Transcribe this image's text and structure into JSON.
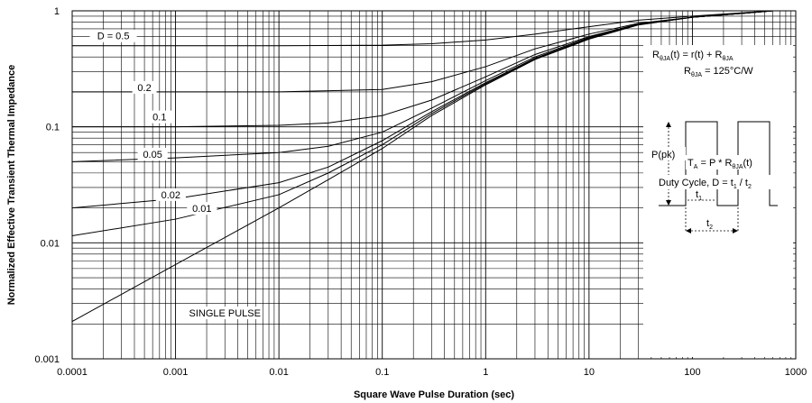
{
  "chart_data": {
    "type": "line",
    "title": "",
    "xlabel": "Square Wave Pulse Duration (sec)",
    "ylabel": "Normalized Effective Transient Thermal Impedance",
    "x_scale": "log",
    "y_scale": "log",
    "xlim": [
      0.0001,
      1000
    ],
    "ylim": [
      0.001,
      1
    ],
    "grid": true,
    "x_ticks": [
      "0.0001",
      "0.001",
      "0.01",
      "0.1",
      "1",
      "10",
      "100",
      "1000"
    ],
    "y_ticks": [
      "1",
      "0.1",
      "0.01",
      "0.001"
    ],
    "series": [
      {
        "name": "D = 0.5",
        "points": [
          [
            0.0001,
            0.5
          ],
          [
            0.001,
            0.5
          ],
          [
            0.01,
            0.5
          ],
          [
            0.1,
            0.505
          ],
          [
            0.3,
            0.52
          ],
          [
            1,
            0.56
          ],
          [
            3,
            0.63
          ],
          [
            10,
            0.73
          ],
          [
            30,
            0.83
          ],
          [
            100,
            0.9
          ],
          [
            300,
            0.96
          ],
          [
            600,
            1.0
          ]
        ]
      },
      {
        "name": "0.2",
        "points": [
          [
            0.0001,
            0.2
          ],
          [
            0.001,
            0.2
          ],
          [
            0.01,
            0.2
          ],
          [
            0.1,
            0.21
          ],
          [
            0.3,
            0.245
          ],
          [
            1,
            0.33
          ],
          [
            3,
            0.47
          ],
          [
            10,
            0.63
          ],
          [
            30,
            0.78
          ],
          [
            100,
            0.88
          ],
          [
            300,
            0.95
          ],
          [
            600,
            1.0
          ]
        ]
      },
      {
        "name": "0.1",
        "points": [
          [
            0.0001,
            0.1
          ],
          [
            0.001,
            0.1
          ],
          [
            0.01,
            0.103
          ],
          [
            0.03,
            0.108
          ],
          [
            0.1,
            0.125
          ],
          [
            0.3,
            0.17
          ],
          [
            1,
            0.27
          ],
          [
            3,
            0.42
          ],
          [
            10,
            0.6
          ],
          [
            30,
            0.77
          ],
          [
            100,
            0.88
          ],
          [
            300,
            0.95
          ],
          [
            600,
            1.0
          ]
        ]
      },
      {
        "name": "0.05",
        "points": [
          [
            0.0001,
            0.05
          ],
          [
            0.001,
            0.054
          ],
          [
            0.01,
            0.06
          ],
          [
            0.03,
            0.068
          ],
          [
            0.1,
            0.09
          ],
          [
            0.3,
            0.145
          ],
          [
            1,
            0.25
          ],
          [
            3,
            0.4
          ],
          [
            10,
            0.59
          ],
          [
            30,
            0.77
          ],
          [
            100,
            0.88
          ],
          [
            300,
            0.95
          ],
          [
            600,
            1.0
          ]
        ]
      },
      {
        "name": "0.02",
        "points": [
          [
            0.0001,
            0.02
          ],
          [
            0.001,
            0.024
          ],
          [
            0.01,
            0.033
          ],
          [
            0.03,
            0.045
          ],
          [
            0.1,
            0.076
          ],
          [
            0.3,
            0.135
          ],
          [
            1,
            0.24
          ],
          [
            3,
            0.39
          ],
          [
            10,
            0.58
          ],
          [
            30,
            0.76
          ],
          [
            100,
            0.88
          ],
          [
            300,
            0.95
          ],
          [
            600,
            1.0
          ]
        ]
      },
      {
        "name": "0.01",
        "points": [
          [
            0.0001,
            0.0115
          ],
          [
            0.001,
            0.016
          ],
          [
            0.01,
            0.026
          ],
          [
            0.03,
            0.04
          ],
          [
            0.1,
            0.07
          ],
          [
            0.3,
            0.13
          ],
          [
            1,
            0.235
          ],
          [
            3,
            0.385
          ],
          [
            10,
            0.575
          ],
          [
            30,
            0.76
          ],
          [
            100,
            0.88
          ],
          [
            300,
            0.95
          ],
          [
            600,
            1.0
          ]
        ]
      },
      {
        "name": "SINGLE PULSE",
        "points": [
          [
            0.0001,
            0.0021
          ],
          [
            0.001,
            0.0065
          ],
          [
            0.01,
            0.02
          ],
          [
            0.03,
            0.035
          ],
          [
            0.1,
            0.065
          ],
          [
            0.3,
            0.125
          ],
          [
            1,
            0.23
          ],
          [
            3,
            0.38
          ],
          [
            10,
            0.57
          ],
          [
            30,
            0.755
          ],
          [
            100,
            0.88
          ],
          [
            300,
            0.95
          ],
          [
            600,
            1.0
          ]
        ]
      }
    ],
    "annotations": {
      "eq_lhs_main": "R",
      "eq_lhs_sub": "θJA",
      "eq_lhs_rest": "(t) = r(t) + R",
      "eq_lhs_sub2": "θJA",
      "eq2_main": "R",
      "eq2_sub": "θJA",
      "eq2_rest": " = 125°C/W",
      "ppk": "P(pk)",
      "ta_main": "T",
      "ta_sub": "A",
      "ta_mid": " = P * R",
      "ta_sub2": "θJA",
      "ta_end": "(t)",
      "duty_main": "Duty Cycle, D = t",
      "duty_sub1": "1",
      "duty_mid": " / t",
      "duty_sub2": "2",
      "t1_main": "t",
      "t1_sub": "1",
      "t2_main": "t",
      "t2_sub": "2"
    }
  }
}
